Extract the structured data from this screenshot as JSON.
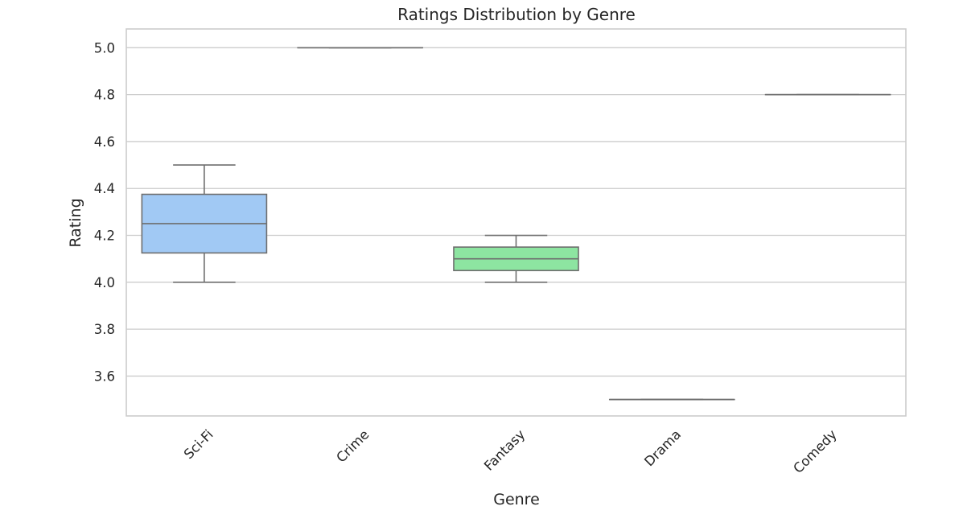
{
  "chart_data": {
    "type": "box",
    "title": "Ratings Distribution by Genre",
    "xlabel": "Genre",
    "ylabel": "Rating",
    "ylim": [
      3.43,
      5.08
    ],
    "yticks": [
      3.6,
      3.8,
      4.0,
      4.2,
      4.4,
      4.6,
      4.8,
      5.0
    ],
    "ytick_labels": [
      "3.6",
      "3.8",
      "4.0",
      "4.2",
      "4.4",
      "4.6",
      "4.8",
      "5.0"
    ],
    "grid": true,
    "categories": [
      "Sci-Fi",
      "Crime",
      "Fantasy",
      "Drama",
      "Comedy"
    ],
    "boxes": [
      {
        "category": "Sci-Fi",
        "min": 4.0,
        "q1": 4.125,
        "median": 4.25,
        "q3": 4.375,
        "max": 4.5,
        "color": "#a1c9f4"
      },
      {
        "category": "Crime",
        "min": 5.0,
        "q1": 5.0,
        "median": 5.0,
        "q3": 5.0,
        "max": 5.0,
        "color": "#ffb482"
      },
      {
        "category": "Fantasy",
        "min": 4.0,
        "q1": 4.05,
        "median": 4.1,
        "q3": 4.15,
        "max": 4.2,
        "color": "#8de5a1"
      },
      {
        "category": "Drama",
        "min": 3.5,
        "q1": 3.5,
        "median": 3.5,
        "q3": 3.5,
        "max": 3.5,
        "color": "#ff9f9b"
      },
      {
        "category": "Comedy",
        "min": 4.8,
        "q1": 4.8,
        "median": 4.8,
        "q3": 4.8,
        "max": 4.8,
        "color": "#d0bbff"
      }
    ]
  }
}
